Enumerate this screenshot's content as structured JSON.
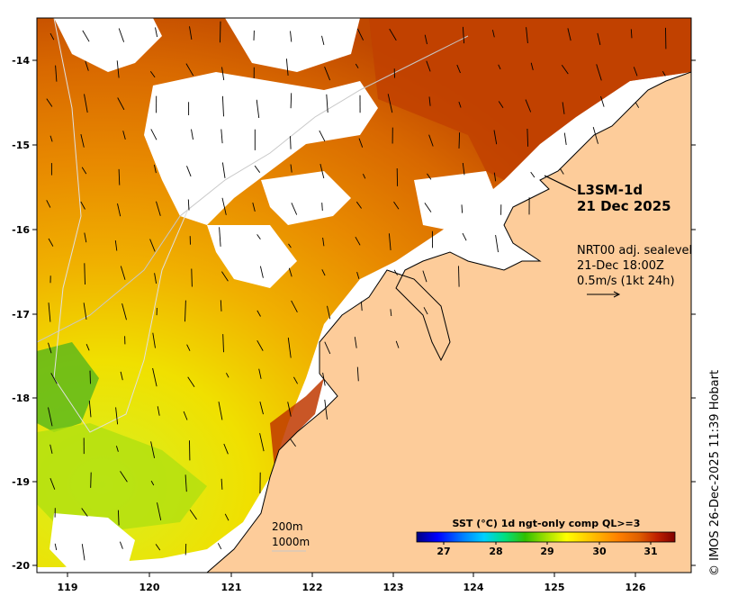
{
  "map": {
    "product": "L3SM-1d",
    "date": "21 Dec 2025",
    "current_source": "NRT00 adj. sealevel",
    "current_time": "21-Dec 18:00Z",
    "vector_scale": "0.5m/s (1kt 24h)",
    "credit": "© IMOS 26-Dec-2025 11:39 Hobart",
    "depth_contours": [
      "200m",
      "1000m"
    ],
    "colors": {
      "land": "#fdcc9a",
      "coast": "#000000",
      "isobath": "#c8c8c8",
      "no_data": "#ffffff"
    },
    "x_ticks": [
      "119",
      "120",
      "121",
      "122",
      "123",
      "124",
      "125",
      "126"
    ],
    "y_ticks": [
      "-14",
      "-15",
      "-16",
      "-17",
      "-18",
      "-19",
      "-20"
    ],
    "lon_range": [
      118.6,
      126.8
    ],
    "lat_range": [
      -20.1,
      -13.5
    ]
  },
  "colorbar": {
    "title": "SST (°C) 1d ngt-only comp QL>=3",
    "ticks": [
      "27",
      "28",
      "29",
      "30",
      "31"
    ],
    "range": [
      26.6,
      31.4
    ],
    "colors": [
      "#000080",
      "#0000ff",
      "#0080ff",
      "#00d0ff",
      "#00e080",
      "#30c000",
      "#a0e000",
      "#ffff00",
      "#ffc000",
      "#ff8000",
      "#e06000",
      "#c02000",
      "#800000"
    ]
  }
}
